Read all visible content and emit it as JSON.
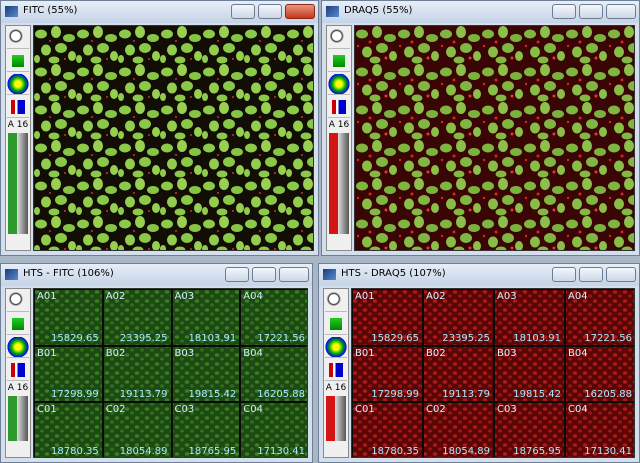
{
  "windows": [
    {
      "title": "FITC (55%)",
      "toolbar_label": "A 16"
    },
    {
      "title": "DRAQ5 (55%)",
      "toolbar_label": "A 16"
    },
    {
      "title": "HTS - FITC (106%)",
      "toolbar_label": "A 16",
      "wells": [
        {
          "id": "A01",
          "value": 15829.65
        },
        {
          "id": "A02",
          "value": 23395.25
        },
        {
          "id": "A03",
          "value": 18103.91
        },
        {
          "id": "A04",
          "value": 17221.56
        },
        {
          "id": "B01",
          "value": 17298.99
        },
        {
          "id": "B02",
          "value": 19113.79
        },
        {
          "id": "B03",
          "value": 19815.42
        },
        {
          "id": "B04",
          "value": 16205.88
        },
        {
          "id": "C01",
          "value": 18780.35
        },
        {
          "id": "C02",
          "value": 18054.89
        },
        {
          "id": "C03",
          "value": 18765.95
        },
        {
          "id": "C04",
          "value": 17130.41
        }
      ]
    },
    {
      "title": "HTS - DRAQ5 (107%)",
      "toolbar_label": "A 16",
      "wells": [
        {
          "id": "A01",
          "value": 15829.65
        },
        {
          "id": "A02",
          "value": 23395.25
        },
        {
          "id": "A03",
          "value": 18103.91
        },
        {
          "id": "A04",
          "value": 17221.56
        },
        {
          "id": "B01",
          "value": 17298.99
        },
        {
          "id": "B02",
          "value": 19113.79
        },
        {
          "id": "B03",
          "value": 19815.42
        },
        {
          "id": "B04",
          "value": 16205.88
        },
        {
          "id": "C01",
          "value": 18780.35
        },
        {
          "id": "C02",
          "value": 18054.89
        },
        {
          "id": "C03",
          "value": 18765.95
        },
        {
          "id": "C04",
          "value": 17130.41
        }
      ]
    }
  ]
}
